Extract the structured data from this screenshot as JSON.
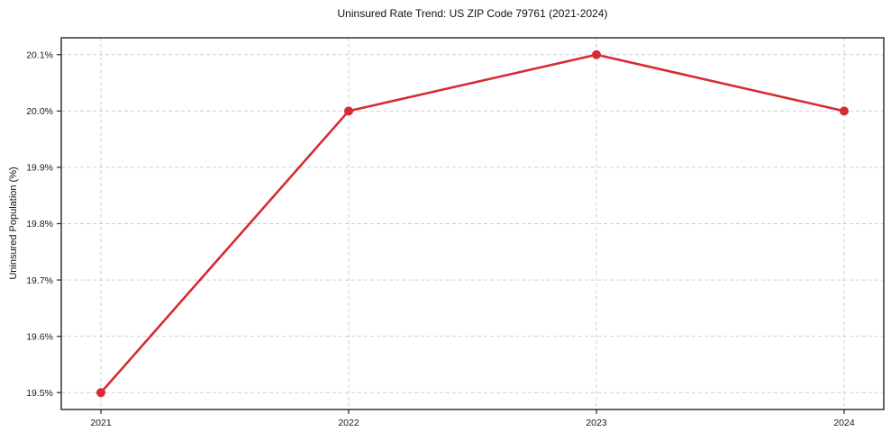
{
  "title": "Uninsured Rate Trend: US ZIP Code 79761 (2021-2024)",
  "chart_data": {
    "type": "line",
    "title": "Uninsured Rate Trend: US ZIP Code 79761 (2021-2024)",
    "xlabel": "",
    "ylabel": "Uninsured Population (%)",
    "x": [
      2021,
      2022,
      2023,
      2024
    ],
    "series": [
      {
        "name": "Uninsured Rate",
        "values": [
          19.5,
          20.0,
          20.1,
          20.0
        ]
      }
    ],
    "xtick_values": [
      2021,
      2022,
      2023,
      2024
    ],
    "xtick_labels": [
      "2021",
      "2022",
      "2023",
      "2024"
    ],
    "ytick_values": [
      19.5,
      19.6,
      19.7,
      19.8,
      19.9,
      20.0,
      20.1
    ],
    "ytick_labels": [
      "19.5%",
      "19.6%",
      "19.7%",
      "19.8%",
      "19.9%",
      "20.0%",
      "20.1%"
    ],
    "xlim": [
      2020.84,
      2024.16
    ],
    "ylim": [
      19.47,
      20.13
    ],
    "grid": true,
    "legend": "none",
    "colors": {
      "line": "#d62b33",
      "marker": "#d62b33",
      "grid": "#d0d0d0",
      "spine": "#262626",
      "text": "#1a1a1a"
    },
    "marker": "circle"
  }
}
